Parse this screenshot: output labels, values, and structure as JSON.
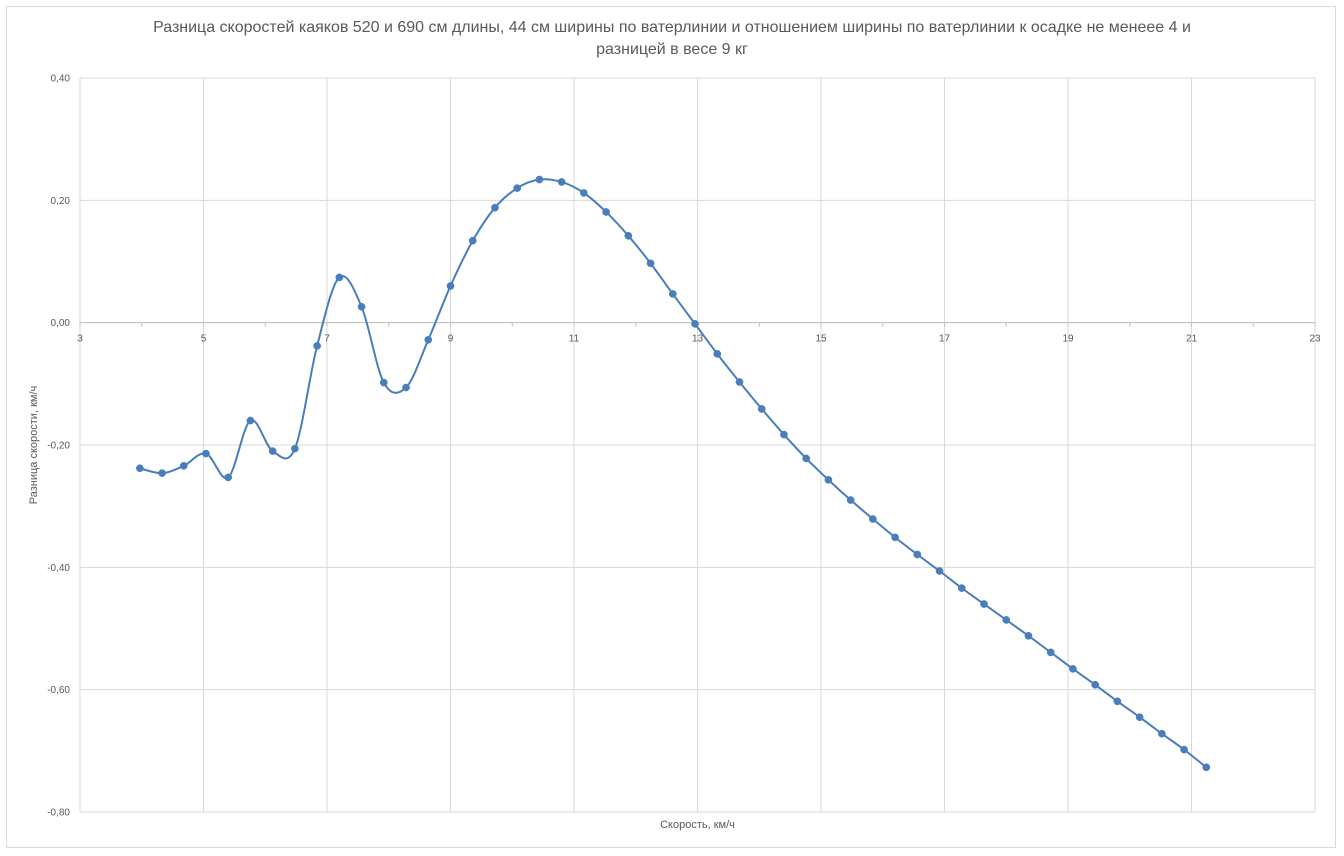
{
  "chart_data": {
    "type": "line",
    "title": "Разница скоростей каяков 520 и 690 см длины, 44 см ширины по ватерлинии и отношением ширины по ватерлинии к осадке не менеее 4 и разницей в весе 9 кг",
    "xlabel": "Скорость, км/ч",
    "ylabel": "Разница скорости, км/ч",
    "xlim": [
      3,
      23
    ],
    "ylim": [
      -0.8,
      0.4
    ],
    "x_ticks": [
      "3",
      "5",
      "7",
      "9",
      "11",
      "13",
      "15",
      "17",
      "19",
      "21",
      "23"
    ],
    "y_ticks": [
      "0,40",
      "0,20",
      "0,00",
      "-0,20",
      "-0,40",
      "-0,60",
      "-0,80"
    ],
    "grid": true,
    "smooth": true,
    "legend": "none",
    "series_color": "#4a7ebb",
    "series": [
      {
        "points": [
          [
            3.97,
            -0.238
          ],
          [
            4.33,
            -0.246
          ],
          [
            4.68,
            -0.234
          ],
          [
            5.04,
            -0.214
          ],
          [
            5.4,
            -0.253
          ],
          [
            5.76,
            -0.16
          ],
          [
            6.12,
            -0.21
          ],
          [
            6.48,
            -0.206
          ],
          [
            6.84,
            -0.038
          ],
          [
            7.2,
            0.074
          ],
          [
            7.56,
            0.026
          ],
          [
            7.92,
            -0.098
          ],
          [
            8.28,
            -0.106
          ],
          [
            8.64,
            -0.028
          ],
          [
            9.0,
            0.06
          ],
          [
            9.36,
            0.134
          ],
          [
            9.72,
            0.188
          ],
          [
            10.08,
            0.22
          ],
          [
            10.44,
            0.234
          ],
          [
            10.8,
            0.23
          ],
          [
            11.16,
            0.212
          ],
          [
            11.52,
            0.181
          ],
          [
            11.88,
            0.142
          ],
          [
            12.24,
            0.097
          ],
          [
            12.6,
            0.047
          ],
          [
            12.96,
            -0.002
          ],
          [
            13.32,
            -0.051
          ],
          [
            13.68,
            -0.097
          ],
          [
            14.04,
            -0.141
          ],
          [
            14.4,
            -0.183
          ],
          [
            14.76,
            -0.222
          ],
          [
            15.12,
            -0.257
          ],
          [
            15.48,
            -0.29
          ],
          [
            15.84,
            -0.321
          ],
          [
            16.2,
            -0.351
          ],
          [
            16.56,
            -0.379
          ],
          [
            16.92,
            -0.406
          ],
          [
            17.28,
            -0.434
          ],
          [
            17.64,
            -0.46
          ],
          [
            18.0,
            -0.486
          ],
          [
            18.36,
            -0.512
          ],
          [
            18.72,
            -0.539
          ],
          [
            19.08,
            -0.566
          ],
          [
            19.44,
            -0.592
          ],
          [
            19.8,
            -0.619
          ],
          [
            20.16,
            -0.645
          ],
          [
            20.52,
            -0.672
          ],
          [
            20.88,
            -0.698
          ],
          [
            21.24,
            -0.727
          ]
        ]
      }
    ]
  }
}
